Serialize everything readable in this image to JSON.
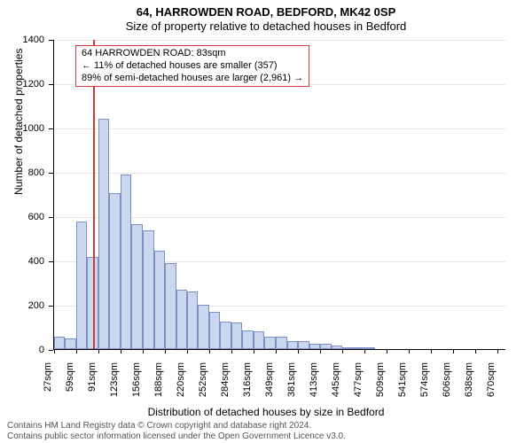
{
  "title_line1": "64, HARROWDEN ROAD, BEDFORD, MK42 0SP",
  "title_line2": "Size of property relative to detached houses in Bedford",
  "ylabel": "Number of detached properties",
  "xlabel": "Distribution of detached houses by size in Bedford",
  "chart": {
    "type": "histogram",
    "background_color": "#ffffff",
    "grid_color": "#e6e6e6",
    "axis_color": "#000000",
    "bar_fill": "#cbd7ef",
    "bar_border": "#7c8fc6",
    "bar_width_ratio": 1.0,
    "title_fontsize": 13,
    "label_fontsize": 12,
    "tick_fontsize": 11,
    "ylim": [
      0,
      1400
    ],
    "ytick_step": 200,
    "xtick_unit_suffix": "sqm",
    "xtick_every": 2,
    "bin_start": 27,
    "bin_width": 16,
    "categories_sqm": [
      27,
      43,
      59,
      75,
      91,
      107,
      123,
      139,
      156,
      172,
      188,
      204,
      220,
      236,
      252,
      268,
      284,
      300,
      316,
      332,
      349,
      365,
      381,
      397,
      413,
      429,
      445,
      461,
      477,
      493,
      509,
      525,
      541,
      558,
      574,
      590,
      606,
      622,
      638,
      654,
      670
    ],
    "values": [
      55,
      50,
      575,
      415,
      1040,
      705,
      790,
      565,
      535,
      445,
      390,
      270,
      260,
      200,
      170,
      125,
      120,
      85,
      80,
      55,
      55,
      35,
      35,
      25,
      25,
      15,
      10,
      10,
      10,
      0,
      0,
      0,
      0,
      0,
      0,
      0,
      0,
      0,
      0,
      0,
      0
    ],
    "reference_line": {
      "value_sqm": 83,
      "color": "#d23a3a"
    }
  },
  "legend": {
    "border_color": "#d23a3a",
    "background": "#ffffff",
    "lines": [
      "64 HARROWDEN ROAD: 83sqm",
      "← 11% of detached houses are smaller (357)",
      "89% of semi-detached houses are larger (2,961) →"
    ]
  },
  "footer_line1": "Contains HM Land Registry data © Crown copyright and database right 2024.",
  "footer_line2": "Contains public sector information licensed under the Open Government Licence v3.0."
}
